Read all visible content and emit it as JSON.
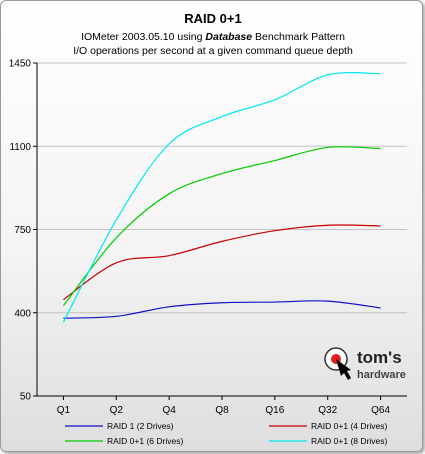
{
  "chart_data": {
    "type": "line",
    "title": "RAID 0+1",
    "subtitle_prefix": "IOMeter 2003.05.10 using ",
    "subtitle_emphasis": "Database",
    "subtitle_suffix": " Benchmark Pattern",
    "subtitle2": "I/O operations per second at a given command queue depth",
    "categories": [
      "Q1",
      "Q2",
      "Q4",
      "Q8",
      "Q16",
      "Q32",
      "Q64"
    ],
    "yticks": [
      50,
      400,
      750,
      1100,
      1450
    ],
    "ylim": [
      50,
      1450
    ],
    "grid": true,
    "legend_position": "bottom",
    "series": [
      {
        "name": "RAID 1 (2 Drives)",
        "color": "#1010c8",
        "values": [
          377,
          385,
          425,
          442,
          445,
          449,
          420
        ]
      },
      {
        "name": "RAID 0+1 (4 Drives)",
        "color": "#c80000",
        "values": [
          455,
          610,
          640,
          700,
          745,
          768,
          765
        ]
      },
      {
        "name": "RAID 0+1 (6 Drives)",
        "color": "#00cc00",
        "values": [
          430,
          715,
          900,
          985,
          1040,
          1095,
          1090
        ]
      },
      {
        "name": "RAID 0+1 (8 Drives)",
        "color": "#00e8f0",
        "values": [
          360,
          790,
          1110,
          1225,
          1295,
          1400,
          1405
        ]
      }
    ]
  },
  "watermark": {
    "brand_line1": "tom's",
    "brand_line2": "hardware"
  }
}
